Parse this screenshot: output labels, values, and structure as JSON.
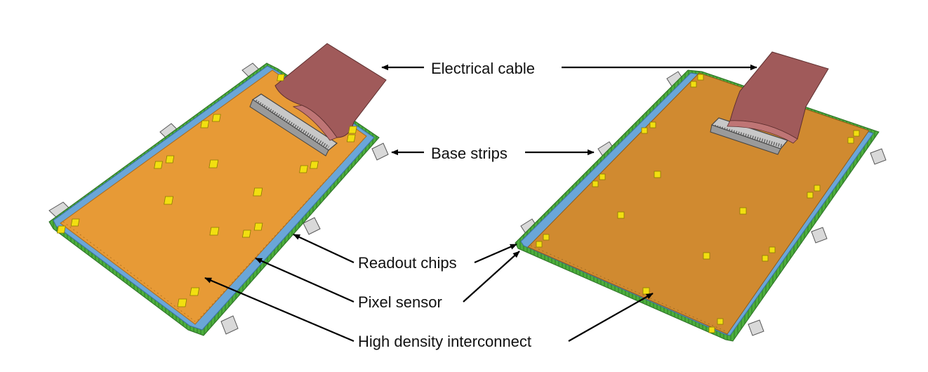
{
  "labels": {
    "electrical_cable": "Electrical cable",
    "base_strips": "Base strips",
    "readout_chips": "Readout chips",
    "pixel_sensor": "Pixel sensor",
    "hdi": "High density interconnect"
  },
  "colors": {
    "hdi": "#e79a36",
    "hdi_right": "#d08a30",
    "sensor_strip": "#6aa6d8",
    "base_strip": "#4cae3c",
    "cable": "#a05a5a",
    "connector": "#c8c8c8",
    "chip": "#f2df10",
    "tab": "#d9d9d9"
  }
}
